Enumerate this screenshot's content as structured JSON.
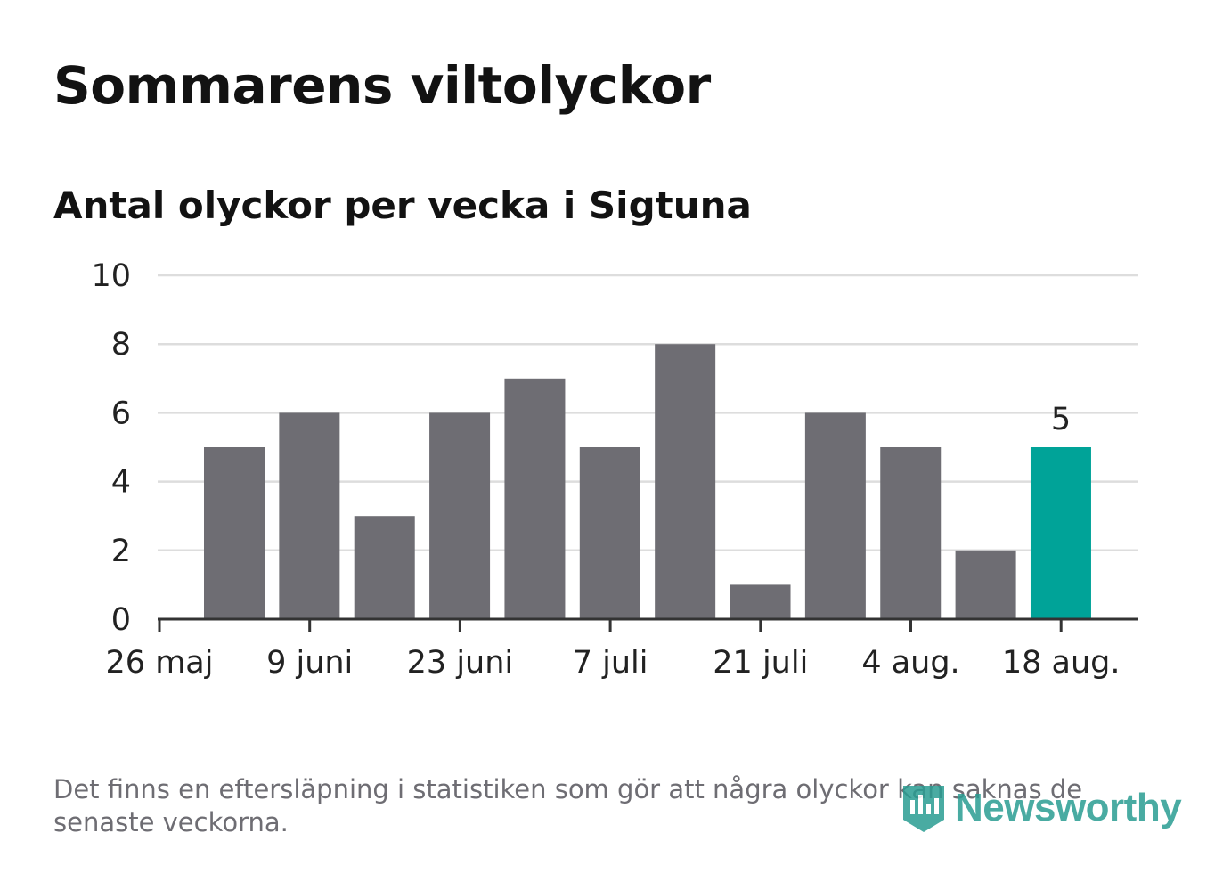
{
  "title": "Sommarens viltolyckor",
  "subtitle": "Antal olyckor per vecka i Sigtuna",
  "footnote": "Det finns en eftersläpning i statistiken som gör att några olyckor kan saknas de senaste veckorna.",
  "logo": {
    "text": "Newsworthy",
    "icon": "bar-chart-badge-icon",
    "color": "#2a9d92"
  },
  "colors": {
    "bar": "#6e6d73",
    "highlight": "#00a398",
    "grid": "#dddddd",
    "axis": "#333333"
  },
  "chart_data": {
    "type": "bar",
    "title": "Sommarens viltolyckor",
    "subtitle": "Antal olyckor per vecka i Sigtuna",
    "ylim": [
      0,
      10
    ],
    "yticks": [
      "0",
      "2",
      "4",
      "6",
      "8",
      "10"
    ],
    "xtick_labels": [
      "26 maj",
      "9 juni",
      "23 juni",
      "7 juli",
      "21 juli",
      "4 aug.",
      "18 aug."
    ],
    "grid": true,
    "values": [
      5,
      6,
      3,
      6,
      7,
      5,
      8,
      1,
      6,
      5,
      2,
      5
    ],
    "highlight_index": 11,
    "highlight_label": "5"
  }
}
